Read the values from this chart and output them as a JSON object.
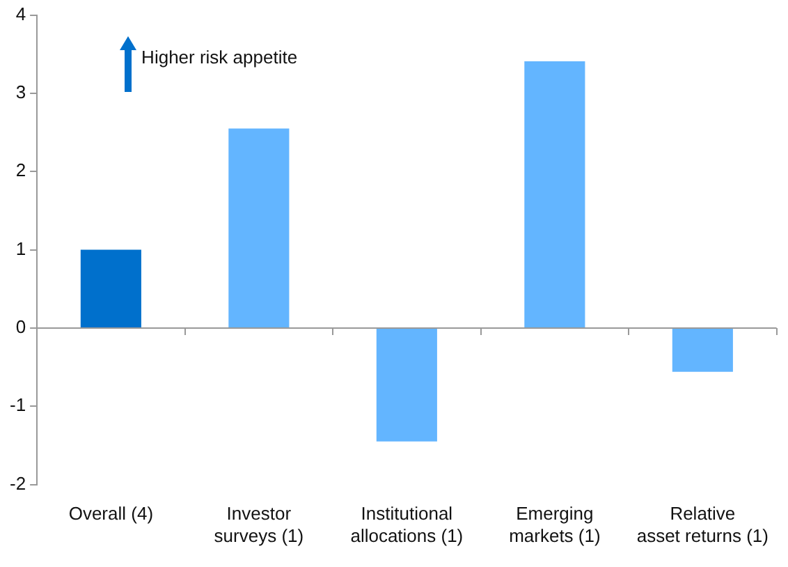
{
  "chart_data": {
    "type": "bar",
    "categories": [
      "Overall (4)",
      "Investor surveys (1)",
      "Institutional allocations (1)",
      "Emerging markets (1)",
      "Relative asset returns (1)"
    ],
    "values": [
      1.0,
      2.55,
      -1.45,
      3.41,
      -0.56
    ],
    "colors": [
      "#0070cc",
      "#63b5ff",
      "#63b5ff",
      "#63b5ff",
      "#63b5ff"
    ],
    "ref_lines": [
      {
        "axis": "y",
        "value": 0,
        "color": "#999999"
      }
    ],
    "ylim": [
      -2,
      4
    ],
    "yticks": [
      -2,
      -1,
      0,
      1,
      2,
      3,
      4
    ],
    "grid": false,
    "legend": false,
    "annotations": [
      "Higher risk appetite"
    ]
  }
}
